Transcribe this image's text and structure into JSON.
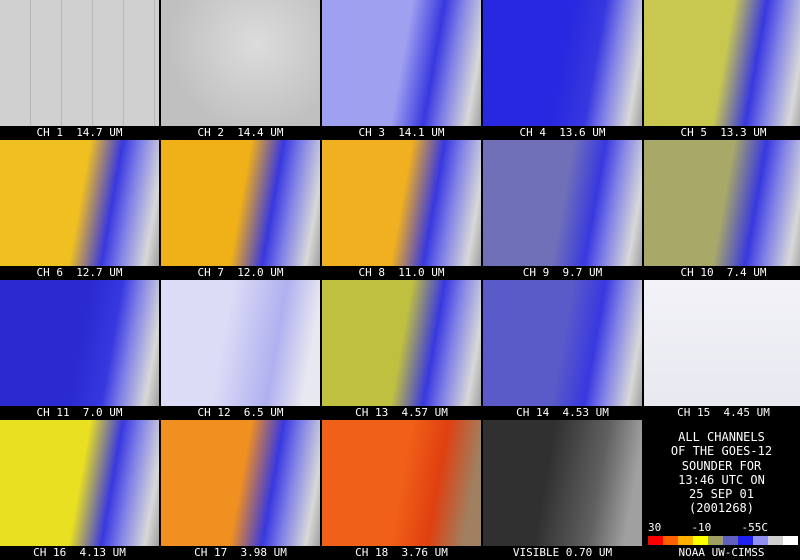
{
  "panels": [
    {
      "label": "CH 1  14.7 UM"
    },
    {
      "label": "CH 2  14.4 UM"
    },
    {
      "label": "CH 3  14.1 UM"
    },
    {
      "label": "CH 4  13.6 UM"
    },
    {
      "label": "CH 5  13.3 UM"
    },
    {
      "label": "CH 6  12.7 UM"
    },
    {
      "label": "CH 7  12.0 UM"
    },
    {
      "label": "CH 8  11.0 UM"
    },
    {
      "label": "CH 9  9.7 UM"
    },
    {
      "label": "CH 10  7.4 UM"
    },
    {
      "label": "CH 11  7.0 UM"
    },
    {
      "label": "CH 12  6.5 UM"
    },
    {
      "label": "CH 13  4.57 UM"
    },
    {
      "label": "CH 14  4.53 UM"
    },
    {
      "label": "CH 15  4.45 UM"
    },
    {
      "label": "CH 16  4.13 UM"
    },
    {
      "label": "CH 17  3.98 UM"
    },
    {
      "label": "CH 18  3.76 UM"
    },
    {
      "label": "VISIBLE 0.70 UM"
    }
  ],
  "info": {
    "lines": [
      "ALL CHANNELS",
      "OF THE GOES-12",
      "SOUNDER FOR",
      "13:46 UTC ON",
      "25 SEP 01",
      "(2001268)"
    ]
  },
  "colorbar": {
    "labels": [
      "30",
      "-10",
      "-55C"
    ]
  },
  "credit": "NOAA UW-CIMSS"
}
